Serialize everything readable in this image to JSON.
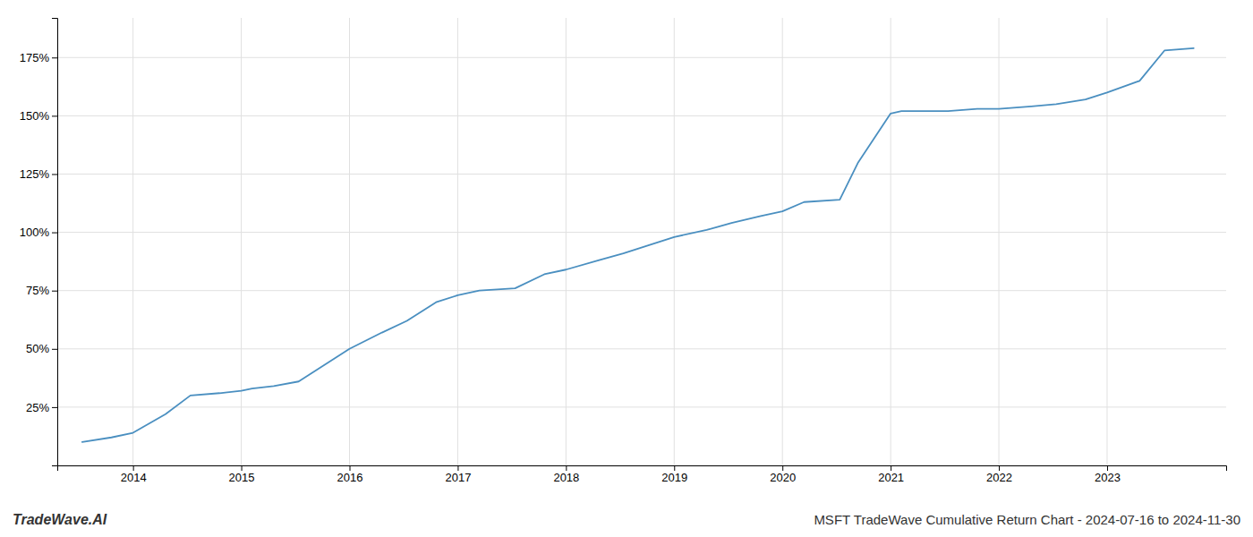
{
  "chart_data": {
    "type": "line",
    "title": "MSFT TradeWave Cumulative Return Chart - 2024-07-16 to 2024-11-30",
    "annotations": [
      "TradeWave.AI"
    ],
    "color": "#4a8fc0",
    "grid": true,
    "x": [
      2013.53,
      2013.8,
      2014.0,
      2014.3,
      2014.53,
      2014.8,
      2015.0,
      2015.1,
      2015.3,
      2015.53,
      2016.0,
      2016.3,
      2016.53,
      2016.8,
      2017.0,
      2017.2,
      2017.53,
      2017.8,
      2018.0,
      2018.3,
      2018.53,
      2018.8,
      2019.0,
      2019.3,
      2019.53,
      2019.8,
      2020.0,
      2020.2,
      2020.53,
      2020.7,
      2021.0,
      2021.1,
      2021.3,
      2021.53,
      2021.8,
      2022.0,
      2022.3,
      2022.53,
      2022.8,
      2023.0,
      2023.3,
      2023.53,
      2023.8
    ],
    "values": [
      0.1,
      0.12,
      0.14,
      0.22,
      0.3,
      0.31,
      0.32,
      0.33,
      0.34,
      0.36,
      0.5,
      0.57,
      0.62,
      0.7,
      0.73,
      0.75,
      0.76,
      0.82,
      0.84,
      0.88,
      0.91,
      0.95,
      0.98,
      1.01,
      1.04,
      1.07,
      1.09,
      1.13,
      1.14,
      1.3,
      1.51,
      1.52,
      1.52,
      1.52,
      1.53,
      1.53,
      1.54,
      1.55,
      1.57,
      1.6,
      1.65,
      1.78,
      1.79
    ],
    "xlim": [
      2013.3,
      2024.1
    ],
    "xticks": [
      2014,
      2015,
      2016,
      2017,
      2018,
      2019,
      2020,
      2021,
      2022,
      2023
    ],
    "ylim": [
      0.0,
      1.92
    ],
    "yticks": [
      {
        "value": 0.25,
        "label": "25%"
      },
      {
        "value": 0.5,
        "label": "50%"
      },
      {
        "value": 0.75,
        "label": "75%"
      },
      {
        "value": 1.0,
        "label": "100%"
      },
      {
        "value": 1.25,
        "label": "125%"
      },
      {
        "value": 1.5,
        "label": "150%"
      },
      {
        "value": 1.75,
        "label": "175%"
      }
    ]
  }
}
